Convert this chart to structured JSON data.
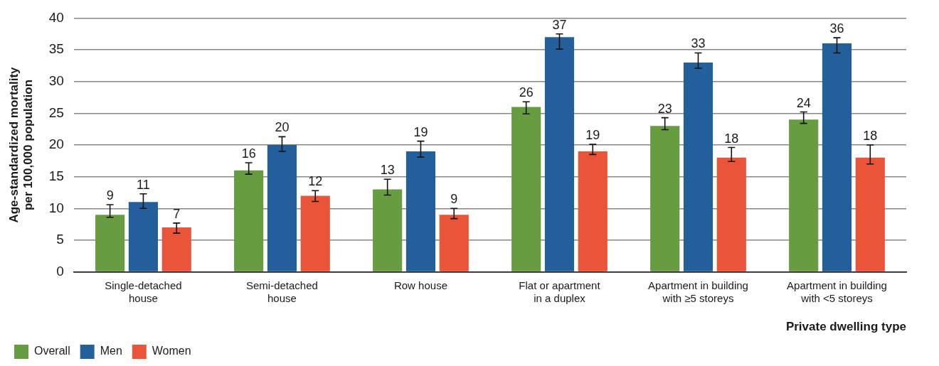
{
  "chart_data": {
    "type": "bar",
    "categories": [
      "Single-detached house",
      "Semi-detached house",
      "Row house",
      "Flat or apartment in a duplex",
      "Apartment in building with ≥5 storeys",
      "Apartment in building with <5 storeys"
    ],
    "series": [
      {
        "name": "Overall",
        "color": "#689c41",
        "values": [
          9,
          16,
          13,
          26,
          23,
          24
        ],
        "errors": [
          [
            8.6,
            10.6
          ],
          [
            15.4,
            17.2
          ],
          [
            12.1,
            14.6
          ],
          [
            24.9,
            26.8
          ],
          [
            22.4,
            24.3
          ],
          [
            23.4,
            25.2
          ]
        ]
      },
      {
        "name": "Men",
        "color": "#235f9b",
        "values": [
          11,
          20,
          19,
          37,
          33,
          36
        ],
        "errors": [
          [
            10.0,
            12.3
          ],
          [
            19.0,
            21.3
          ],
          [
            18.1,
            20.6
          ],
          [
            35.1,
            37.5
          ],
          [
            32.1,
            34.5
          ],
          [
            34.5,
            36.9
          ]
        ]
      },
      {
        "name": "Women",
        "color": "#ea553a",
        "values": [
          7,
          12,
          9,
          19,
          18,
          18
        ],
        "errors": [
          [
            6.1,
            7.7
          ],
          [
            11.1,
            12.8
          ],
          [
            8.4,
            10.0
          ],
          [
            18.5,
            20.1
          ],
          [
            17.4,
            19.6
          ],
          [
            17.0,
            20.0
          ]
        ]
      }
    ],
    "xlabel": "Private dwelling type",
    "ylabel": "Age-standardized mortality per 100,000 population",
    "ylim": [
      0,
      40
    ],
    "yticks": [
      0,
      5,
      10,
      15,
      20,
      25,
      30,
      35,
      40
    ],
    "grid": "y",
    "legend": "bottom left",
    "data_labels": true
  }
}
